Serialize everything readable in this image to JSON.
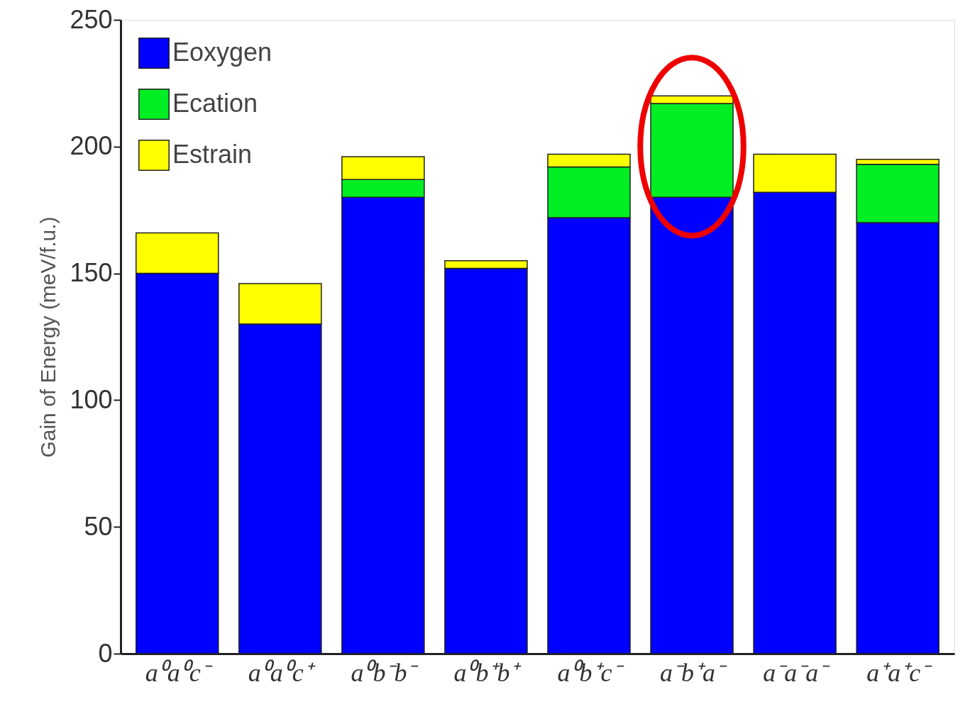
{
  "chart_data": {
    "type": "bar",
    "stacked": true,
    "ylabel": "Gain of Energy (meV/f.u.)",
    "categories": [
      "a⁰a⁰c⁻",
      "a⁰a⁰c⁺",
      "a⁰b⁻b⁻",
      "a⁰b⁺b⁺",
      "a⁰b⁺c⁻",
      "a⁻b⁺a⁻",
      "a⁻a⁻a⁻",
      "a⁺a⁺c⁻"
    ],
    "series": [
      {
        "name": "Eoxygen",
        "color": "#0000ff",
        "values": [
          150,
          130,
          180,
          152,
          172,
          180,
          182,
          170
        ]
      },
      {
        "name": "Ecation",
        "color": "#00ee22",
        "values": [
          0,
          0,
          7,
          0,
          20,
          37,
          0,
          23
        ]
      },
      {
        "name": "Estrain",
        "color": "#ffff00",
        "values": [
          16,
          16,
          9,
          3,
          5,
          3,
          15,
          2
        ]
      }
    ],
    "ylim": [
      0,
      250
    ],
    "yticks": [
      0,
      50,
      100,
      150,
      200,
      250
    ],
    "grid": false,
    "legend": "top left"
  }
}
